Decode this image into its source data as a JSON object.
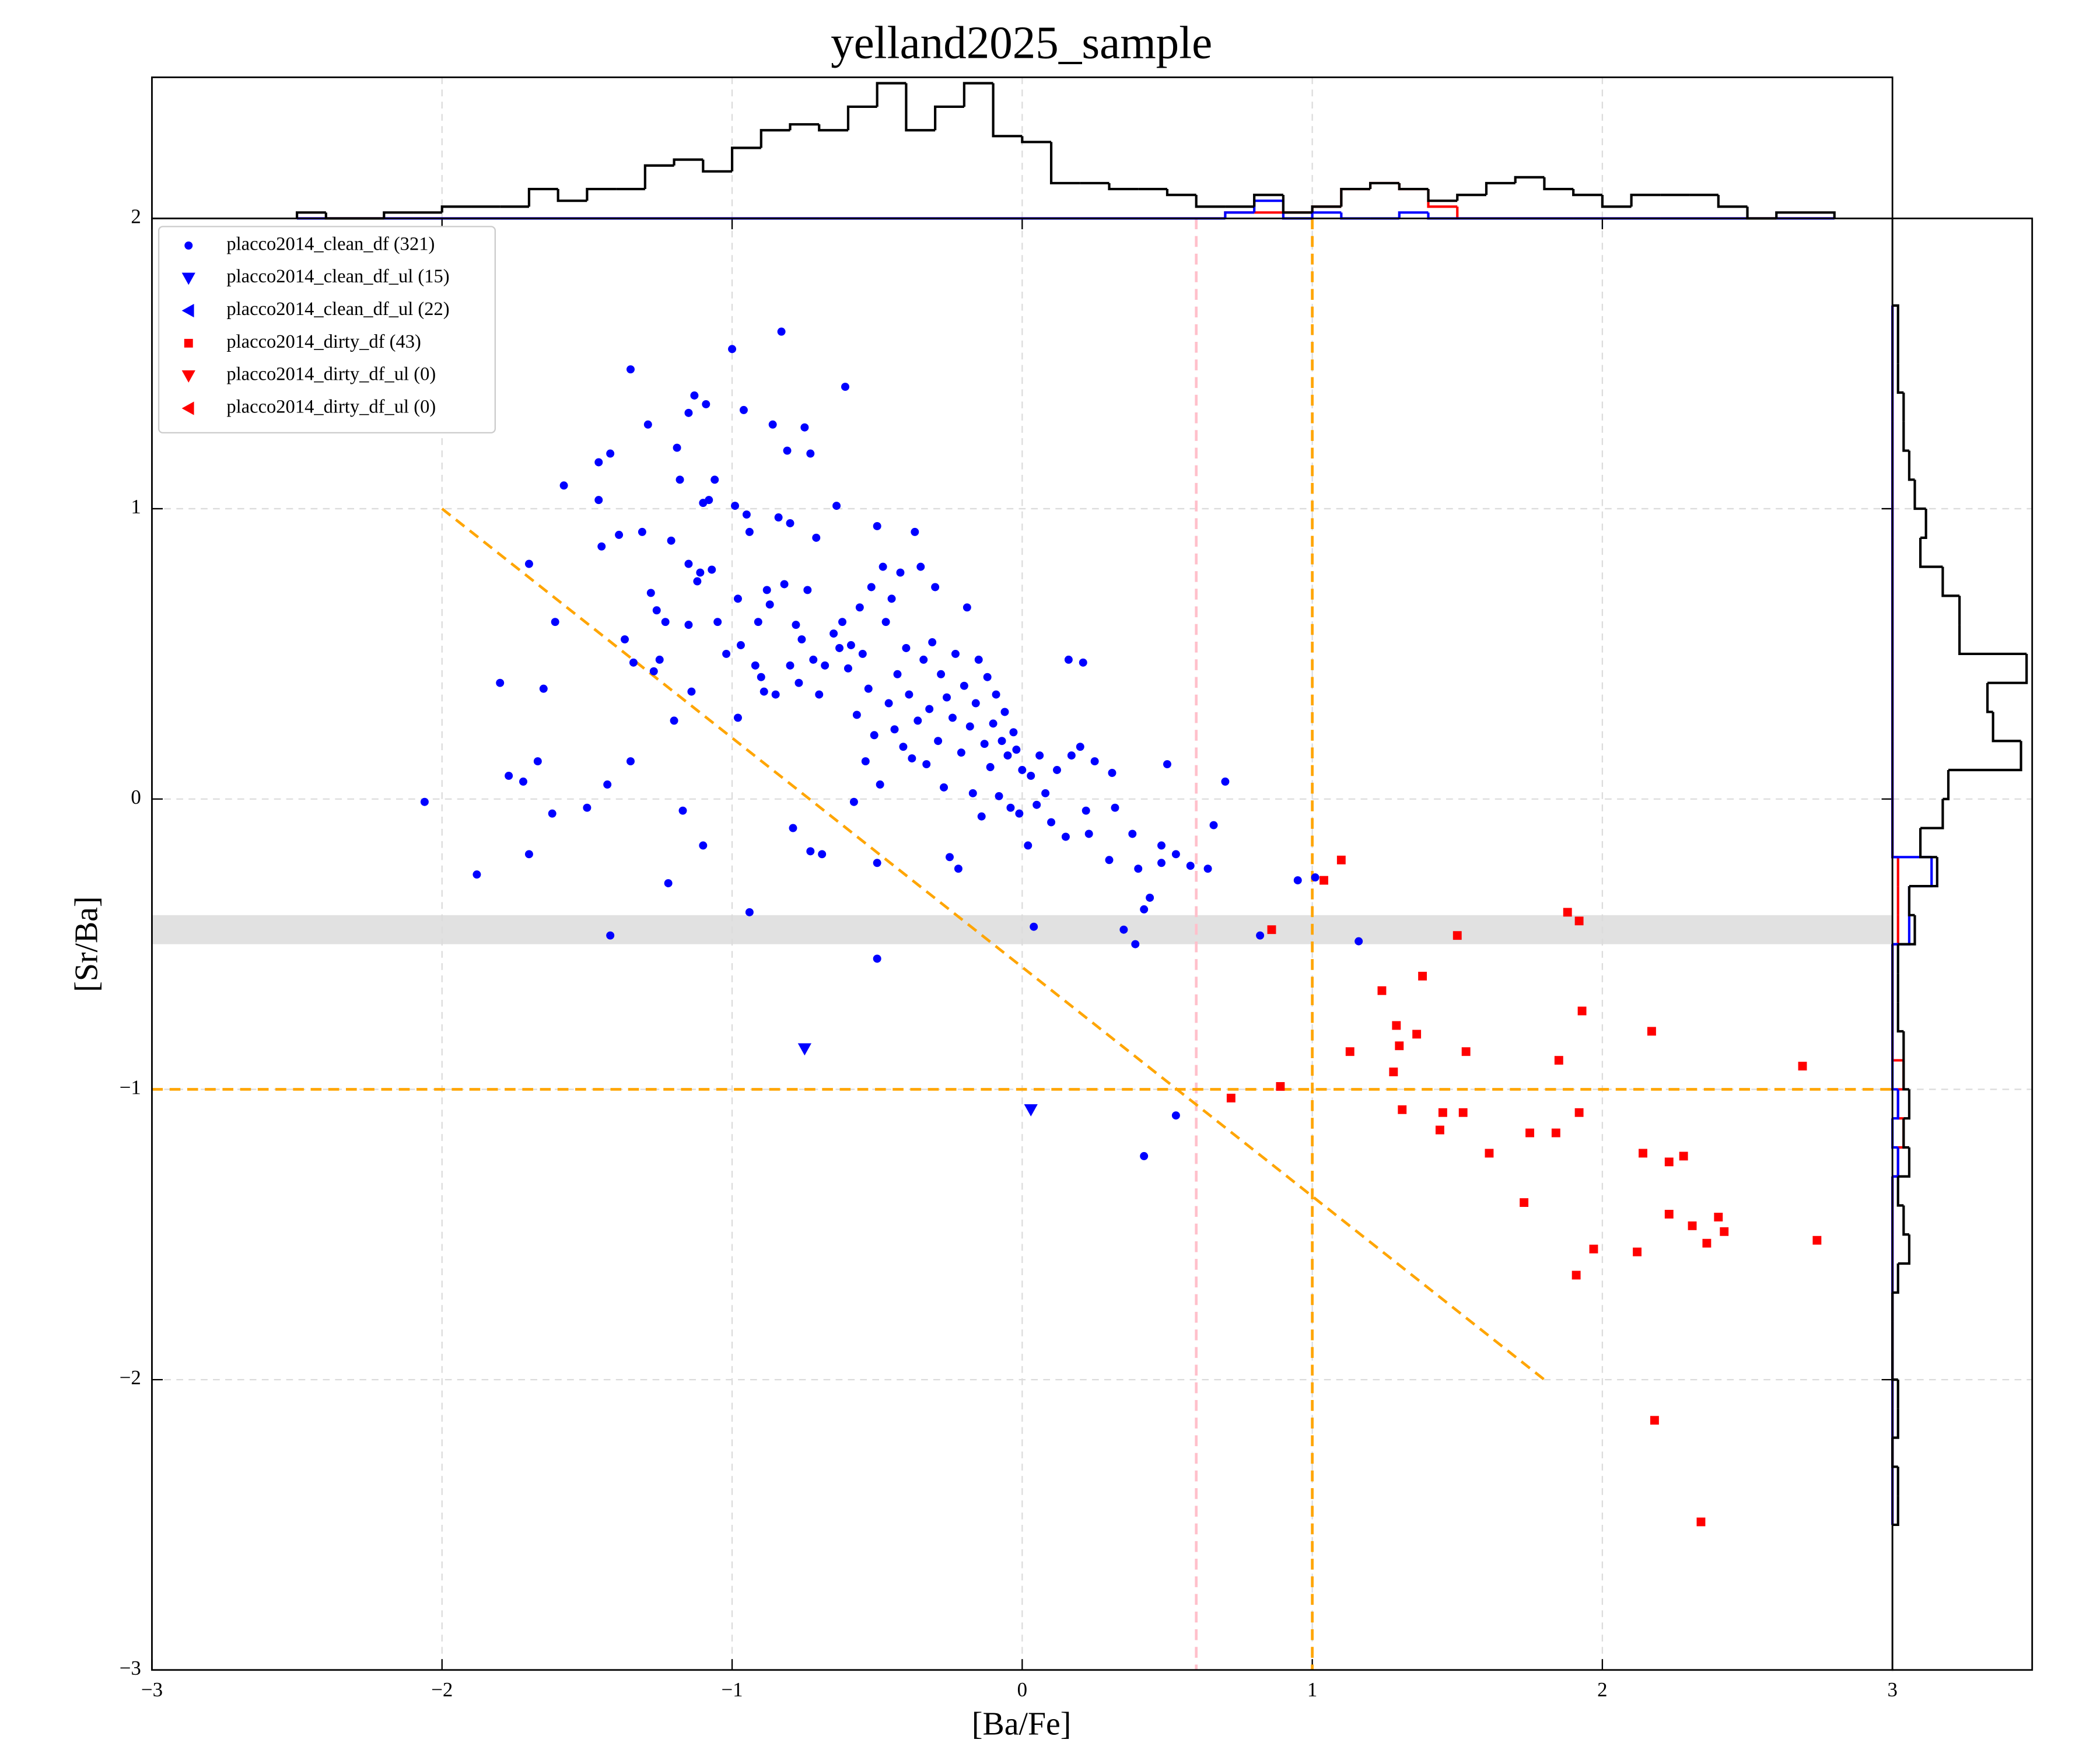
{
  "chart_data": [
    {
      "type": "scatter",
      "title": "yelland2025_sample",
      "xlabel": "[Ba/Fe]",
      "ylabel": "[Sr/Ba]",
      "xlim": [
        -3,
        3
      ],
      "ylim": [
        -3,
        2
      ],
      "xticks": [
        {
          "value": -3,
          "label": "−3"
        },
        {
          "value": -2,
          "label": "−2"
        },
        {
          "value": -1,
          "label": "−1"
        },
        0,
        1,
        2,
        3
      ],
      "yticks": [
        {
          "value": -3,
          "label": "−3"
        },
        {
          "value": -2,
          "label": "−2"
        },
        {
          "value": -1,
          "label": "−1"
        },
        0,
        1,
        2
      ],
      "grid": true,
      "legend": "upper left",
      "hspan": {
        "y": [
          -0.5,
          -0.4
        ],
        "color": "#dcdcdc"
      },
      "vlines": [
        {
          "x": 0.6,
          "color": "pink"
        },
        {
          "x": 1,
          "color": "orange"
        }
      ],
      "hlines": [
        {
          "y": -1,
          "color": "orange"
        }
      ],
      "segments": [
        {
          "x": [
            -2,
            1.8
          ],
          "y": [
            1,
            -2
          ],
          "color": "orange"
        }
      ],
      "series": [
        {
          "name": "placco2014_clean_df (321)",
          "color": "blue",
          "marker": "o",
          "x": [
            -2.06,
            -1.88,
            -1.8,
            -1.77,
            -1.72,
            -1.7,
            -1.7,
            -1.67,
            -1.65,
            -1.62,
            -1.61,
            -1.58,
            -1.5,
            -1.46,
            -1.46,
            -1.45,
            -1.43,
            -1.42,
            -1.42,
            -1.39,
            -1.37,
            -1.35,
            -1.35,
            -1.34,
            -1.31,
            -1.29,
            -1.28,
            -1.27,
            -1.26,
            -1.25,
            -1.23,
            -1.22,
            -1.21,
            -1.2,
            -1.19,
            -1.18,
            -1.17,
            -1.15,
            -1.15,
            -1.15,
            -1.14,
            -1.13,
            -1.12,
            -1.11,
            -1.1,
            -1.1,
            -1.09,
            -1.08,
            -1.07,
            -1.06,
            -1.05,
            -1.02,
            -1.0,
            -0.99,
            -0.98,
            -0.98,
            -0.97,
            -0.96,
            -0.95,
            -0.94,
            -0.94,
            -0.92,
            -0.91,
            -0.9,
            -0.89,
            -0.88,
            -0.87,
            -0.86,
            -0.85,
            -0.84,
            -0.83,
            -0.82,
            -0.81,
            -0.8,
            -0.8,
            -0.79,
            -0.78,
            -0.77,
            -0.76,
            -0.75,
            -0.74,
            -0.73,
            -0.73,
            -0.72,
            -0.71,
            -0.7,
            -0.69,
            -0.68,
            -0.65,
            -0.64,
            -0.63,
            -0.62,
            -0.61,
            -0.6,
            -0.59,
            -0.58,
            -0.57,
            -0.56,
            -0.55,
            -0.54,
            -0.53,
            -0.52,
            -0.51,
            -0.5,
            -0.5,
            -0.49,
            -0.48,
            -0.47,
            -0.46,
            -0.45,
            -0.44,
            -0.43,
            -0.42,
            -0.41,
            -0.4,
            -0.39,
            -0.38,
            -0.37,
            -0.36,
            -0.35,
            -0.34,
            -0.33,
            -0.32,
            -0.31,
            -0.3,
            -0.29,
            -0.28,
            -0.27,
            -0.26,
            -0.25,
            -0.24,
            -0.23,
            -0.22,
            -0.21,
            -0.2,
            -0.19,
            -0.18,
            -0.17,
            -0.16,
            -0.15,
            -0.14,
            -0.13,
            -0.12,
            -0.11,
            -0.1,
            -0.09,
            -0.08,
            -0.07,
            -0.06,
            -0.05,
            -0.04,
            -0.03,
            -0.02,
            -0.01,
            0.0,
            0.02,
            0.03,
            0.04,
            0.05,
            0.06,
            0.08,
            0.1,
            0.12,
            0.15,
            0.16,
            0.17,
            0.2,
            0.21,
            0.22,
            0.23,
            0.25,
            0.3,
            0.31,
            0.32,
            0.35,
            0.38,
            0.39,
            0.4,
            0.42,
            0.42,
            0.44,
            0.48,
            0.48,
            0.5,
            0.53,
            0.53,
            0.58,
            0.64,
            0.66,
            0.7,
            0.82,
            0.95,
            1.01,
            1.16,
            -0.5
          ],
          "y": [
            -0.01,
            -0.26,
            0.4,
            0.08,
            0.06,
            -0.19,
            0.81,
            0.13,
            0.38,
            -0.05,
            0.61,
            1.08,
            -0.03,
            1.16,
            1.03,
            0.87,
            0.05,
            1.19,
            -0.47,
            0.91,
            0.55,
            1.48,
            0.13,
            0.47,
            0.92,
            1.29,
            0.71,
            0.44,
            0.65,
            0.48,
            0.61,
            -0.29,
            0.89,
            0.27,
            1.21,
            1.1,
            -0.04,
            1.33,
            0.81,
            0.6,
            0.37,
            1.39,
            0.75,
            0.78,
            -0.16,
            1.02,
            1.36,
            1.03,
            0.79,
            1.1,
            0.61,
            0.5,
            1.55,
            1.01,
            0.28,
            0.69,
            0.53,
            1.34,
            0.98,
            0.92,
            -0.39,
            0.46,
            0.61,
            0.42,
            0.37,
            0.72,
            0.67,
            1.29,
            0.36,
            0.97,
            1.61,
            0.74,
            1.2,
            0.46,
            0.95,
            -0.1,
            0.6,
            0.4,
            0.55,
            1.28,
            0.72,
            1.19,
            -0.18,
            0.48,
            0.9,
            0.36,
            -0.19,
            0.46,
            0.57,
            1.01,
            0.52,
            0.61,
            1.42,
            0.45,
            0.53,
            -0.01,
            0.29,
            0.66,
            0.5,
            0.13,
            0.38,
            0.73,
            0.22,
            -0.22,
            0.94,
            0.05,
            0.8,
            0.61,
            0.33,
            0.69,
            0.24,
            0.43,
            0.78,
            0.18,
            0.52,
            0.36,
            0.14,
            0.92,
            0.27,
            0.8,
            0.48,
            0.12,
            0.31,
            0.54,
            0.73,
            0.2,
            0.43,
            0.04,
            0.35,
            -0.2,
            0.28,
            0.5,
            -0.24,
            0.16,
            0.39,
            0.66,
            0.25,
            0.02,
            0.33,
            0.48,
            -0.06,
            0.19,
            0.42,
            0.11,
            0.26,
            0.36,
            0.01,
            0.2,
            0.3,
            0.15,
            -0.03,
            0.23,
            0.17,
            -0.05,
            0.1,
            -0.16,
            0.08,
            -0.44,
            -0.02,
            0.15,
            0.02,
            -0.08,
            0.1,
            -0.13,
            0.48,
            0.15,
            0.18,
            0.47,
            -0.04,
            -0.12,
            0.13,
            -0.21,
            0.09,
            -0.03,
            -0.45,
            -0.12,
            -0.5,
            -0.24,
            -1.23,
            -0.38,
            -0.34,
            -0.22,
            -0.16,
            0.12,
            -1.09,
            -0.19,
            -0.23,
            -0.24,
            -0.09,
            0.06,
            -0.47,
            -0.28,
            -0.27,
            -0.49,
            -0.55
          ]
        },
        {
          "name": "placco2014_clean_df_ul (15)",
          "color": "blue",
          "marker": "v",
          "x": [
            -0.75,
            0.03
          ],
          "y": [
            -0.86,
            -1.07
          ]
        },
        {
          "name": "placco2014_clean_df_ul (22)",
          "color": "blue",
          "marker": "<",
          "x": [],
          "y": []
        },
        {
          "name": "placco2014_dirty_df (43)",
          "color": "red",
          "marker": "s",
          "x": [
            1.1,
            1.04,
            0.86,
            0.72,
            0.89,
            1.24,
            1.29,
            1.3,
            1.36,
            1.38,
            1.13,
            1.28,
            1.31,
            1.45,
            1.44,
            1.52,
            1.53,
            1.5,
            1.61,
            1.75,
            1.73,
            1.84,
            1.85,
            1.88,
            1.92,
            1.93,
            1.92,
            1.91,
            1.97,
            2.12,
            2.14,
            2.17,
            2.18,
            2.23,
            2.23,
            2.28,
            2.31,
            2.36,
            2.4,
            2.42,
            2.34,
            2.69,
            2.74
          ],
          "y": [
            -0.21,
            -0.28,
            -0.45,
            -1.03,
            -0.99,
            -0.66,
            -0.78,
            -0.85,
            -0.81,
            -0.61,
            -0.87,
            -0.94,
            -1.07,
            -1.08,
            -1.14,
            -1.08,
            -0.87,
            -0.47,
            -1.22,
            -1.15,
            -1.39,
            -1.15,
            -0.9,
            -0.39,
            -0.42,
            -0.73,
            -1.08,
            -1.64,
            -1.55,
            -1.56,
            -1.22,
            -0.8,
            -2.14,
            -1.25,
            -1.43,
            -1.23,
            -1.47,
            -1.53,
            -1.44,
            -1.49,
            -2.49,
            -0.92,
            -1.52
          ]
        },
        {
          "name": "placco2014_dirty_df_ul (0)",
          "color": "red",
          "marker": "v",
          "x": [],
          "y": []
        },
        {
          "name": "placco2014_dirty_df_ul (0)",
          "color": "red",
          "marker": "<",
          "x": [],
          "y": []
        }
      ]
    },
    {
      "type": "histogram",
      "orientation": "vertical",
      "ylim": [
        0,
        24
      ],
      "bins": [
        -2.5,
        -2.4,
        -2.3,
        -2.2,
        -2.1,
        -2.0,
        -1.9,
        -1.8,
        -1.7,
        -1.6,
        -1.5,
        -1.4,
        -1.3,
        -1.2,
        -1.1,
        -1.0,
        -0.9,
        -0.8,
        -0.7,
        -0.6,
        -0.5,
        -0.4,
        -0.3,
        -0.2,
        -0.1,
        0.0,
        0.1,
        0.2,
        0.3,
        0.4,
        0.5,
        0.6,
        0.7,
        0.8,
        0.9,
        1.0,
        1.1,
        1.2,
        1.3,
        1.4,
        1.5,
        1.6,
        1.7,
        1.8,
        1.9,
        2.0,
        2.1,
        2.2,
        2.3,
        2.4,
        2.5,
        2.6,
        2.7,
        2.8
      ],
      "series": [
        {
          "color": "red",
          "values": [
            0,
            0,
            0,
            0,
            0,
            0,
            0,
            0,
            0,
            0,
            0,
            0,
            0,
            0,
            0,
            0,
            0,
            0,
            0,
            0,
            0,
            0,
            0,
            0,
            0,
            0,
            0,
            0,
            0,
            0,
            0,
            0,
            1,
            1,
            1,
            2,
            5,
            6,
            5,
            2,
            0,
            0,
            0,
            0,
            0,
            0,
            0,
            0,
            0,
            0,
            0,
            0,
            0
          ]
        },
        {
          "color": "blue",
          "values": [
            0,
            0,
            0,
            0,
            0,
            0,
            0,
            0,
            0,
            0,
            0,
            0,
            0,
            0,
            0,
            0,
            0,
            0,
            0,
            0,
            0,
            0,
            0,
            0,
            0,
            0,
            0,
            0,
            0,
            0,
            0,
            0,
            1,
            3,
            0,
            1,
            0,
            0,
            1,
            0,
            0,
            0,
            0,
            0,
            0,
            0,
            0,
            0,
            0,
            0,
            0,
            0,
            0
          ]
        },
        {
          "color": "black",
          "values": [
            1,
            0,
            0,
            1,
            1,
            2,
            2,
            2,
            5,
            3,
            5,
            5,
            9,
            10,
            8,
            12,
            15,
            16,
            15,
            19,
            23,
            15,
            19,
            23,
            14,
            13,
            6,
            6,
            5,
            5,
            4,
            2,
            2,
            4,
            1,
            2,
            5,
            6,
            5,
            3,
            4,
            6,
            7,
            5,
            4,
            2,
            4,
            4,
            4,
            2,
            0,
            1,
            1
          ]
        }
      ]
    },
    {
      "type": "histogram",
      "orientation": "horizontal",
      "xlim": [
        0,
        25
      ],
      "bins": [
        -2.5,
        -2.4,
        -2.3,
        -2.2,
        -2.1,
        -2.0,
        -1.9,
        -1.8,
        -1.7,
        -1.6,
        -1.5,
        -1.4,
        -1.3,
        -1.2,
        -1.1,
        -1.0,
        -0.9,
        -0.8,
        -0.7,
        -0.6,
        -0.5,
        -0.4,
        -0.3,
        -0.2,
        -0.1,
        0.0,
        0.1,
        0.2,
        0.3,
        0.4,
        0.5,
        0.6,
        0.7,
        0.8,
        0.9,
        1.0,
        1.1,
        1.2,
        1.3,
        1.4,
        1.5,
        1.6,
        1.7
      ],
      "series": [
        {
          "color": "red",
          "values": [
            0,
            0,
            0,
            0,
            0,
            0,
            0,
            0,
            0,
            0,
            0,
            0,
            1,
            2,
            1,
            2,
            0,
            0,
            0,
            0,
            1,
            1,
            1,
            0,
            0,
            0,
            0,
            0,
            0,
            0,
            0,
            0,
            0,
            0,
            0,
            0,
            0,
            0,
            0,
            0,
            0,
            0
          ]
        },
        {
          "color": "blue",
          "values": [
            0,
            0,
            0,
            0,
            0,
            0,
            0,
            0,
            0,
            0,
            0,
            0,
            1,
            0,
            1,
            0,
            0,
            0,
            0,
            0,
            3,
            3,
            7,
            0,
            0,
            0,
            0,
            0,
            0,
            0,
            0,
            0,
            0,
            0,
            0,
            0,
            0,
            0,
            0,
            0,
            0,
            0
          ]
        },
        {
          "color": "black",
          "values": [
            1,
            1,
            0,
            1,
            1,
            0,
            0,
            0,
            1,
            3,
            2,
            1,
            3,
            2,
            3,
            2,
            2,
            1,
            1,
            1,
            4,
            3,
            8,
            5,
            9,
            10,
            23,
            18,
            17,
            24,
            12,
            12,
            9,
            5,
            6,
            4,
            3,
            2,
            2,
            1,
            1,
            1
          ]
        }
      ]
    }
  ]
}
